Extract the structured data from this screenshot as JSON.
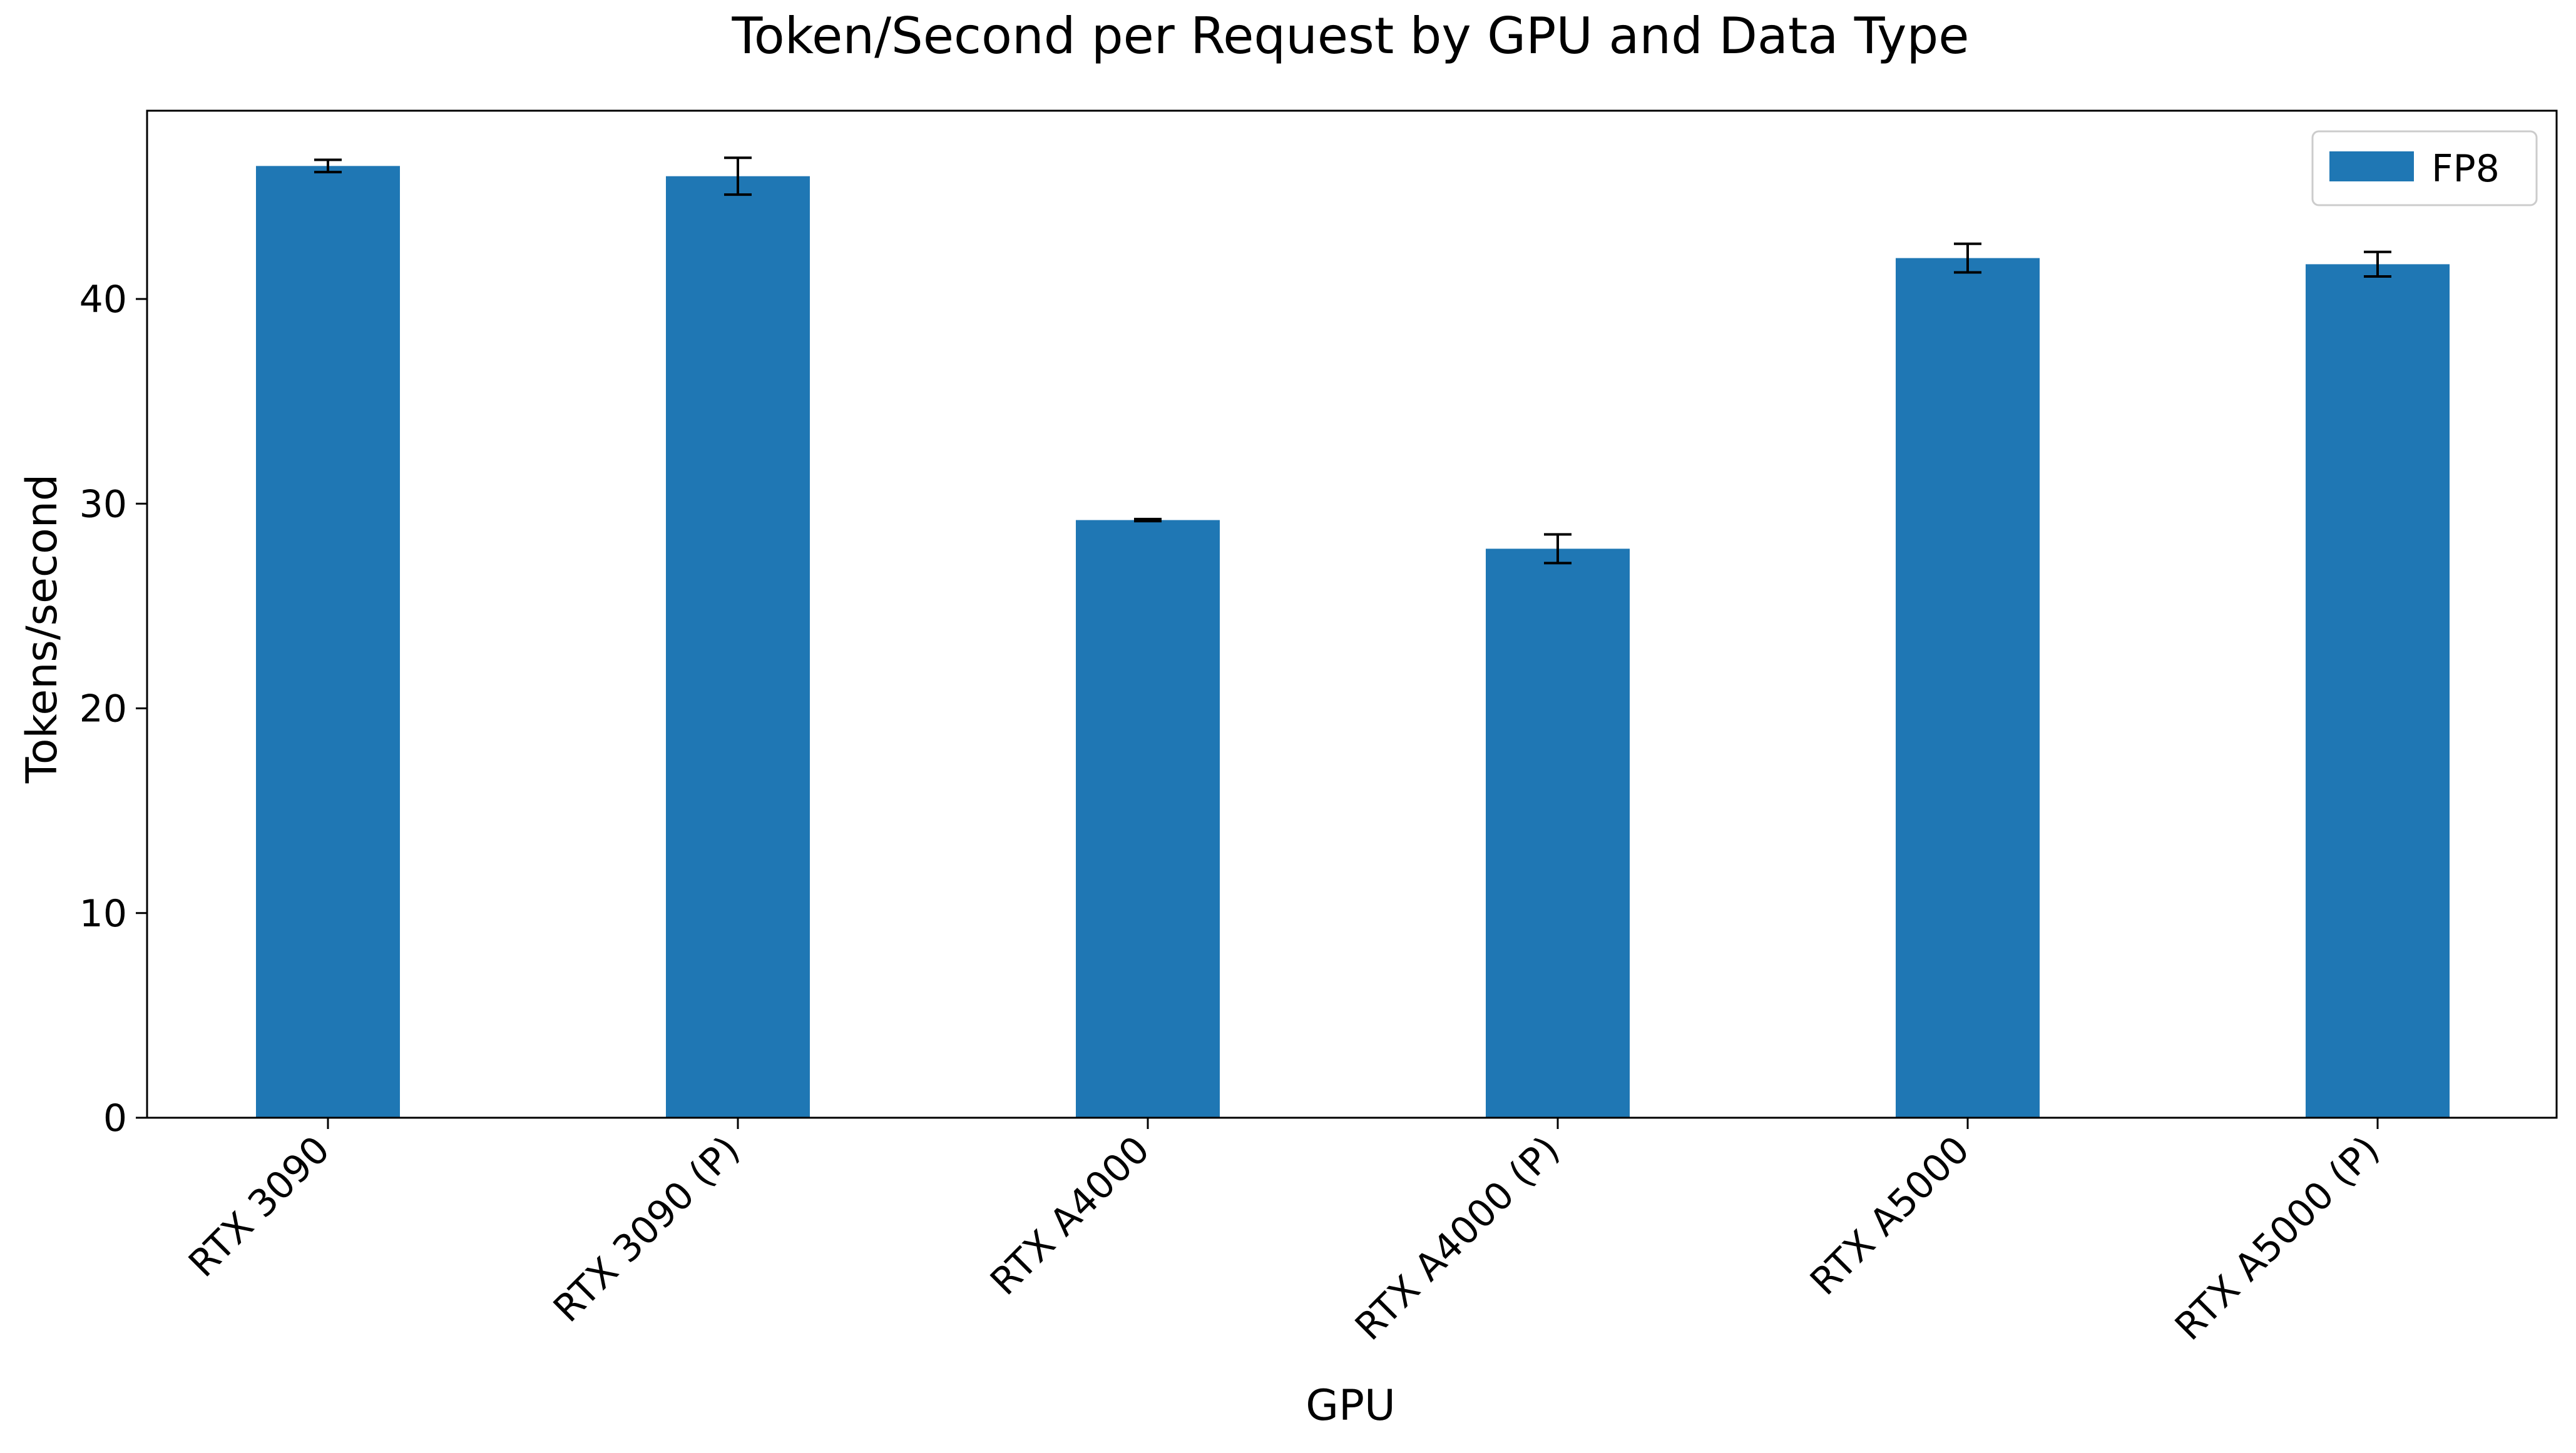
{
  "chart_data": {
    "type": "bar",
    "title": "Token/Second per Request by GPU and Data Type",
    "xlabel": "GPU",
    "ylabel": "Tokens/second",
    "categories": [
      "RTX 3090",
      "RTX 3090 (P)",
      "RTX A4000",
      "RTX A4000 (P)",
      "RTX A5000",
      "RTX A5000 (P)"
    ],
    "series": [
      {
        "name": "FP8",
        "color": "#1f77b4",
        "values": [
          46.5,
          46.0,
          29.2,
          27.8,
          42.0,
          41.7
        ],
        "error": [
          0.3,
          0.9,
          0.05,
          0.7,
          0.7,
          0.6
        ]
      }
    ],
    "ylim": [
      0,
      49.2
    ],
    "yticks": [
      0,
      10,
      20,
      30,
      40
    ],
    "grid": false,
    "legend_position": "top-right",
    "xtick_rotation": "45 degrees"
  }
}
